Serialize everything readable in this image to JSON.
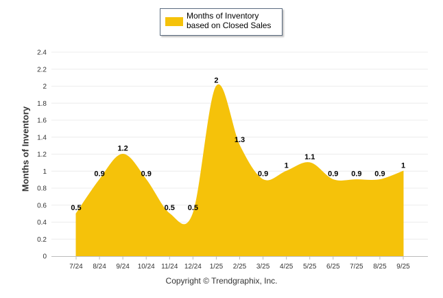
{
  "chart_data": {
    "type": "area",
    "title": "",
    "xlabel": "",
    "ylabel": "Months of Inventory",
    "legend": [
      "Months of Inventory based on Closed Sales"
    ],
    "legend_position": "top-center",
    "grid": true,
    "ylim": [
      0,
      2.4
    ],
    "yticks": [
      "0",
      "0.2",
      "0.4",
      "0.6",
      "0.8",
      "1",
      "1.2",
      "1.4",
      "1.6",
      "1.8",
      "2",
      "2.2",
      "2.4"
    ],
    "categories": [
      "7/24",
      "8/24",
      "9/24",
      "10/24",
      "11/24",
      "12/24",
      "1/25",
      "2/25",
      "3/25",
      "4/25",
      "5/25",
      "6/25",
      "7/25",
      "8/25",
      "9/25"
    ],
    "series": [
      {
        "name": "Months of Inventory based on Closed Sales",
        "values": [
          0.5,
          0.9,
          1.2,
          0.9,
          0.5,
          0.5,
          2,
          1.3,
          0.9,
          1,
          1.1,
          0.9,
          0.9,
          0.9,
          1
        ],
        "labels": [
          "0.5",
          "0.9",
          "1.2",
          "0.9",
          "0.5",
          "0.5",
          "2",
          "1.3",
          "0.9",
          "1",
          "1.1",
          "0.9",
          "0.9",
          "0.9",
          "1"
        ],
        "color": "#f5c20a"
      }
    ]
  },
  "footer": {
    "copyright": "Copyright © Trendgraphix, Inc."
  }
}
